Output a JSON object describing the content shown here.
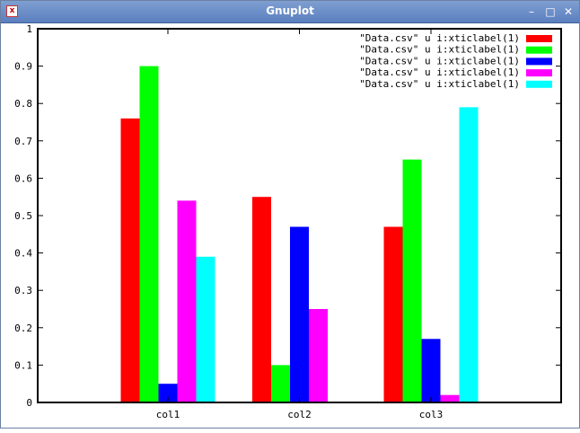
{
  "window": {
    "title": "Gnuplot",
    "app_icon": "gnuplot-icon",
    "controls": {
      "minimize": "–",
      "maximize": "□",
      "close": "✕"
    }
  },
  "chart_data": {
    "type": "bar",
    "title": "",
    "xlabel": "",
    "ylabel": "",
    "categories": [
      "col1",
      "col2",
      "col3"
    ],
    "ylim": [
      0,
      1
    ],
    "yticks": [
      "0",
      "0.1",
      "0.2",
      "0.3",
      "0.4",
      "0.5",
      "0.6",
      "0.7",
      "0.8",
      "0.9",
      "1"
    ],
    "grid": false,
    "legend_position": "top-right",
    "series": [
      {
        "name": "\"Data.csv\" u i:xticlabel(1)",
        "color": "#ff0000",
        "values": [
          0.76,
          0.55,
          0.47
        ]
      },
      {
        "name": "\"Data.csv\" u i:xticlabel(1)",
        "color": "#00ff00",
        "values": [
          0.9,
          0.1,
          0.65
        ]
      },
      {
        "name": "\"Data.csv\" u i:xticlabel(1)",
        "color": "#0000ff",
        "values": [
          0.05,
          0.47,
          0.17
        ]
      },
      {
        "name": "\"Data.csv\" u i:xticlabel(1)",
        "color": "#ff00ff",
        "values": [
          0.54,
          0.25,
          0.02
        ]
      },
      {
        "name": "\"Data.csv\" u i:xticlabel(1)",
        "color": "#00ffff",
        "values": [
          0.39,
          0.0,
          0.79
        ]
      }
    ]
  }
}
